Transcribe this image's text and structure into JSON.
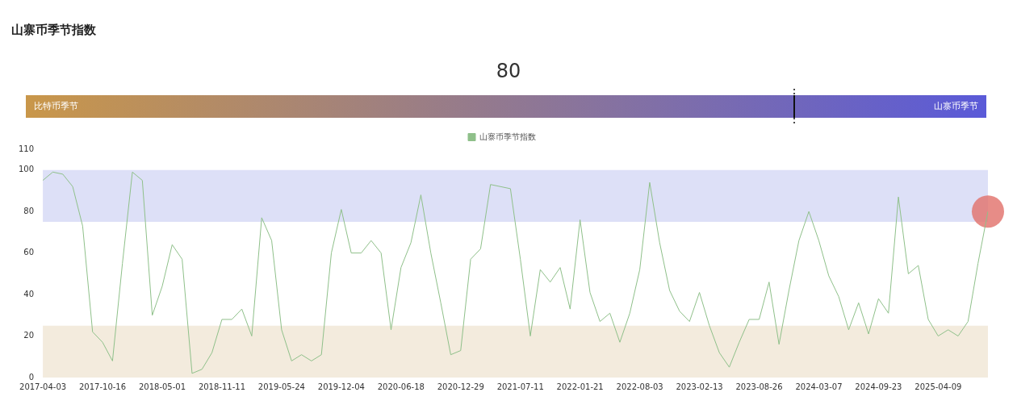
{
  "chart_data": [
    {
      "type": "other",
      "title": "山寨币季节指数",
      "annotations": [
        "比特币季节",
        "山寨币季节"
      ],
      "values": [
        80
      ],
      "data_labels": true
    },
    {
      "type": "line",
      "categories": [
        "2017-04-03",
        null,
        null,
        null,
        null,
        null,
        "2017-10-16",
        null,
        null,
        null,
        null,
        null,
        "2018-05-01",
        null,
        null,
        null,
        null,
        null,
        "2018-11-11",
        null,
        null,
        null,
        null,
        null,
        "2019-05-24",
        null,
        null,
        null,
        null,
        null,
        "2019-12-04",
        null,
        null,
        null,
        null,
        null,
        "2020-06-18",
        null,
        null,
        null,
        null,
        null,
        "2020-12-29",
        null,
        null,
        null,
        null,
        null,
        "2021-07-11",
        null,
        null,
        null,
        null,
        null,
        "2022-01-21",
        null,
        null,
        null,
        null,
        null,
        "2022-08-03",
        null,
        null,
        null,
        null,
        null,
        "2023-02-13",
        null,
        null,
        null,
        null,
        null,
        "2023-08-26",
        null,
        null,
        null,
        null,
        null,
        "2024-03-07",
        null,
        null,
        null,
        null,
        null,
        "2024-09-23",
        null,
        null,
        null,
        null,
        null,
        "2025-04-09",
        null,
        null,
        null,
        null,
        null
      ],
      "series": [
        {
          "name": "山寨币季节指数",
          "color": "#8fc08a",
          "values": [
            95,
            99,
            98,
            92,
            73,
            22,
            17,
            8,
            55,
            99,
            95,
            30,
            44,
            64,
            57,
            2,
            4,
            12,
            28,
            28,
            33,
            20,
            77,
            66,
            23,
            8,
            11,
            8,
            11,
            60,
            81,
            60,
            60,
            66,
            60,
            23,
            53,
            65,
            88,
            60,
            36,
            11,
            13,
            57,
            62,
            93,
            92,
            91,
            57,
            20,
            52,
            46,
            53,
            33,
            76,
            41,
            27,
            31,
            17,
            31,
            52,
            94,
            65,
            42,
            32,
            27,
            41,
            25,
            12,
            5,
            17,
            28,
            28,
            46,
            16,
            42,
            66,
            80,
            66,
            49,
            39,
            23,
            36,
            21,
            38,
            31,
            87,
            50,
            54,
            28,
            20,
            23,
            20,
            27,
            55,
            80
          ]
        },
        {
          "type": "scatter",
          "marker": "circle",
          "color": "#e2726c",
          "values": [
            null,
            null,
            null,
            null,
            null,
            null,
            null,
            null,
            null,
            null,
            null,
            null,
            null,
            null,
            null,
            null,
            null,
            null,
            null,
            null,
            null,
            null,
            null,
            null,
            null,
            null,
            null,
            null,
            null,
            null,
            null,
            null,
            null,
            null,
            null,
            null,
            null,
            null,
            null,
            null,
            null,
            null,
            null,
            null,
            null,
            null,
            null,
            null,
            null,
            null,
            null,
            null,
            null,
            null,
            null,
            null,
            null,
            null,
            null,
            null,
            null,
            null,
            null,
            null,
            null,
            null,
            null,
            null,
            null,
            null,
            null,
            null,
            null,
            null,
            null,
            null,
            null,
            null,
            null,
            null,
            null,
            null,
            null,
            null,
            null,
            null,
            null,
            null,
            null,
            null,
            null,
            null,
            null,
            null,
            null,
            80
          ]
        }
      ],
      "ylim": [
        0,
        110
      ],
      "yticks": [
        0,
        20,
        40,
        60,
        80,
        100,
        110
      ],
      "bands": [
        {
          "axis": "y",
          "from": 75,
          "to": 100,
          "color": "#dde0f7"
        },
        {
          "axis": "y",
          "from": 0,
          "to": 25,
          "color": "#f3ebdd"
        }
      ],
      "legend": "top",
      "grid": false,
      "marker": "none",
      "line_style": "solid"
    }
  ]
}
